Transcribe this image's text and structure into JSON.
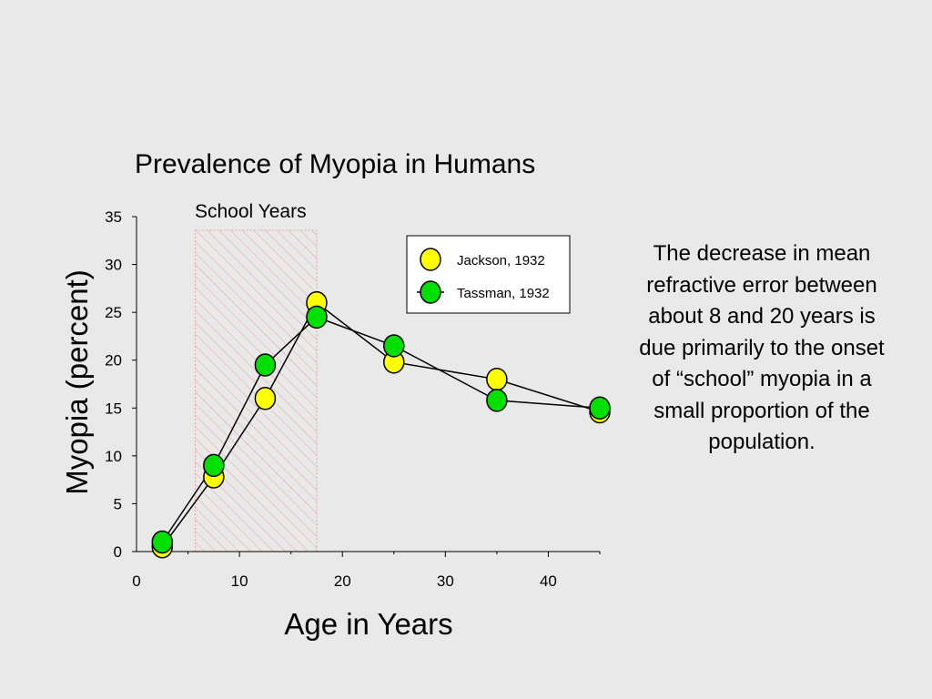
{
  "chart_data": {
    "type": "line",
    "title": "Prevalence of Myopia in Humans",
    "xlabel": "Age in Years",
    "ylabel": "Myopia (percent)",
    "xlim": [
      0,
      45
    ],
    "ylim": [
      0,
      35
    ],
    "xticks": [
      0,
      10,
      20,
      30,
      40
    ],
    "yticks": [
      0,
      5,
      10,
      15,
      20,
      25,
      30,
      35
    ],
    "grid": false,
    "legend_position": "top-right",
    "shaded_region": {
      "label": "School Years",
      "x_start": 5.7,
      "x_end": 17.5,
      "color": "#e8a0a0"
    },
    "series": [
      {
        "name": "Jackson, 1932",
        "color": "#ffff00",
        "x": [
          2.5,
          7.5,
          12.5,
          17.5,
          25,
          35,
          45
        ],
        "y": [
          0.5,
          7.8,
          16,
          26,
          19.8,
          18,
          14.6
        ]
      },
      {
        "name": "Tassman, 1932",
        "color": "#00e000",
        "x": [
          2.5,
          7.5,
          12.5,
          17.5,
          25,
          35,
          45
        ],
        "y": [
          1,
          9,
          19.5,
          24.5,
          21.5,
          15.8,
          15
        ]
      }
    ]
  },
  "note": {
    "text": "The decrease in mean refractive error between about 8 and 20 years is due primarily to the onset of “school” myopia in a small proportion of the population."
  }
}
